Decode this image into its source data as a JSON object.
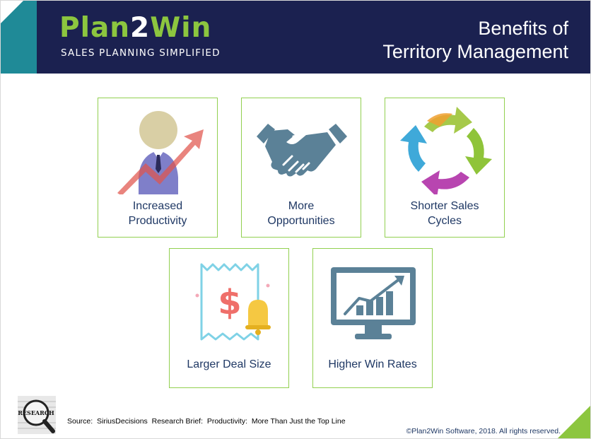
{
  "header": {
    "logo": {
      "part1": "Plan",
      "part2": "2",
      "part3": "Win",
      "tagline": "SALES PLANNING SIMPLIFIED"
    },
    "title_line1": "Benefits of",
    "title_line2": "Territory Management"
  },
  "benefits": [
    {
      "label_line1": "Increased",
      "label_line2": "Productivity",
      "icon": "productivity-icon"
    },
    {
      "label_line1": "More",
      "label_line2": "Opportunities",
      "icon": "handshake-icon"
    },
    {
      "label_line1": "Shorter Sales",
      "label_line2": "Cycles",
      "icon": "cycle-arrows-icon"
    },
    {
      "label_line1": "Larger Deal Size",
      "icon": "receipt-bell-icon"
    },
    {
      "label_line1": "Higher Win Rates",
      "icon": "monitor-chart-icon"
    }
  ],
  "footer": {
    "research_badge": "RESEARCH",
    "source": "Source:  SiriusDecisions  Research Brief:  Productivity:  More Than Just the Top Line",
    "copyright": "©Plan2Win Software, 2018. All rights reserved."
  },
  "colors": {
    "navy": "#1b2150",
    "teal": "#1f8a97",
    "green": "#8cc63f",
    "card_border": "#92d050",
    "label": "#1f3864"
  }
}
